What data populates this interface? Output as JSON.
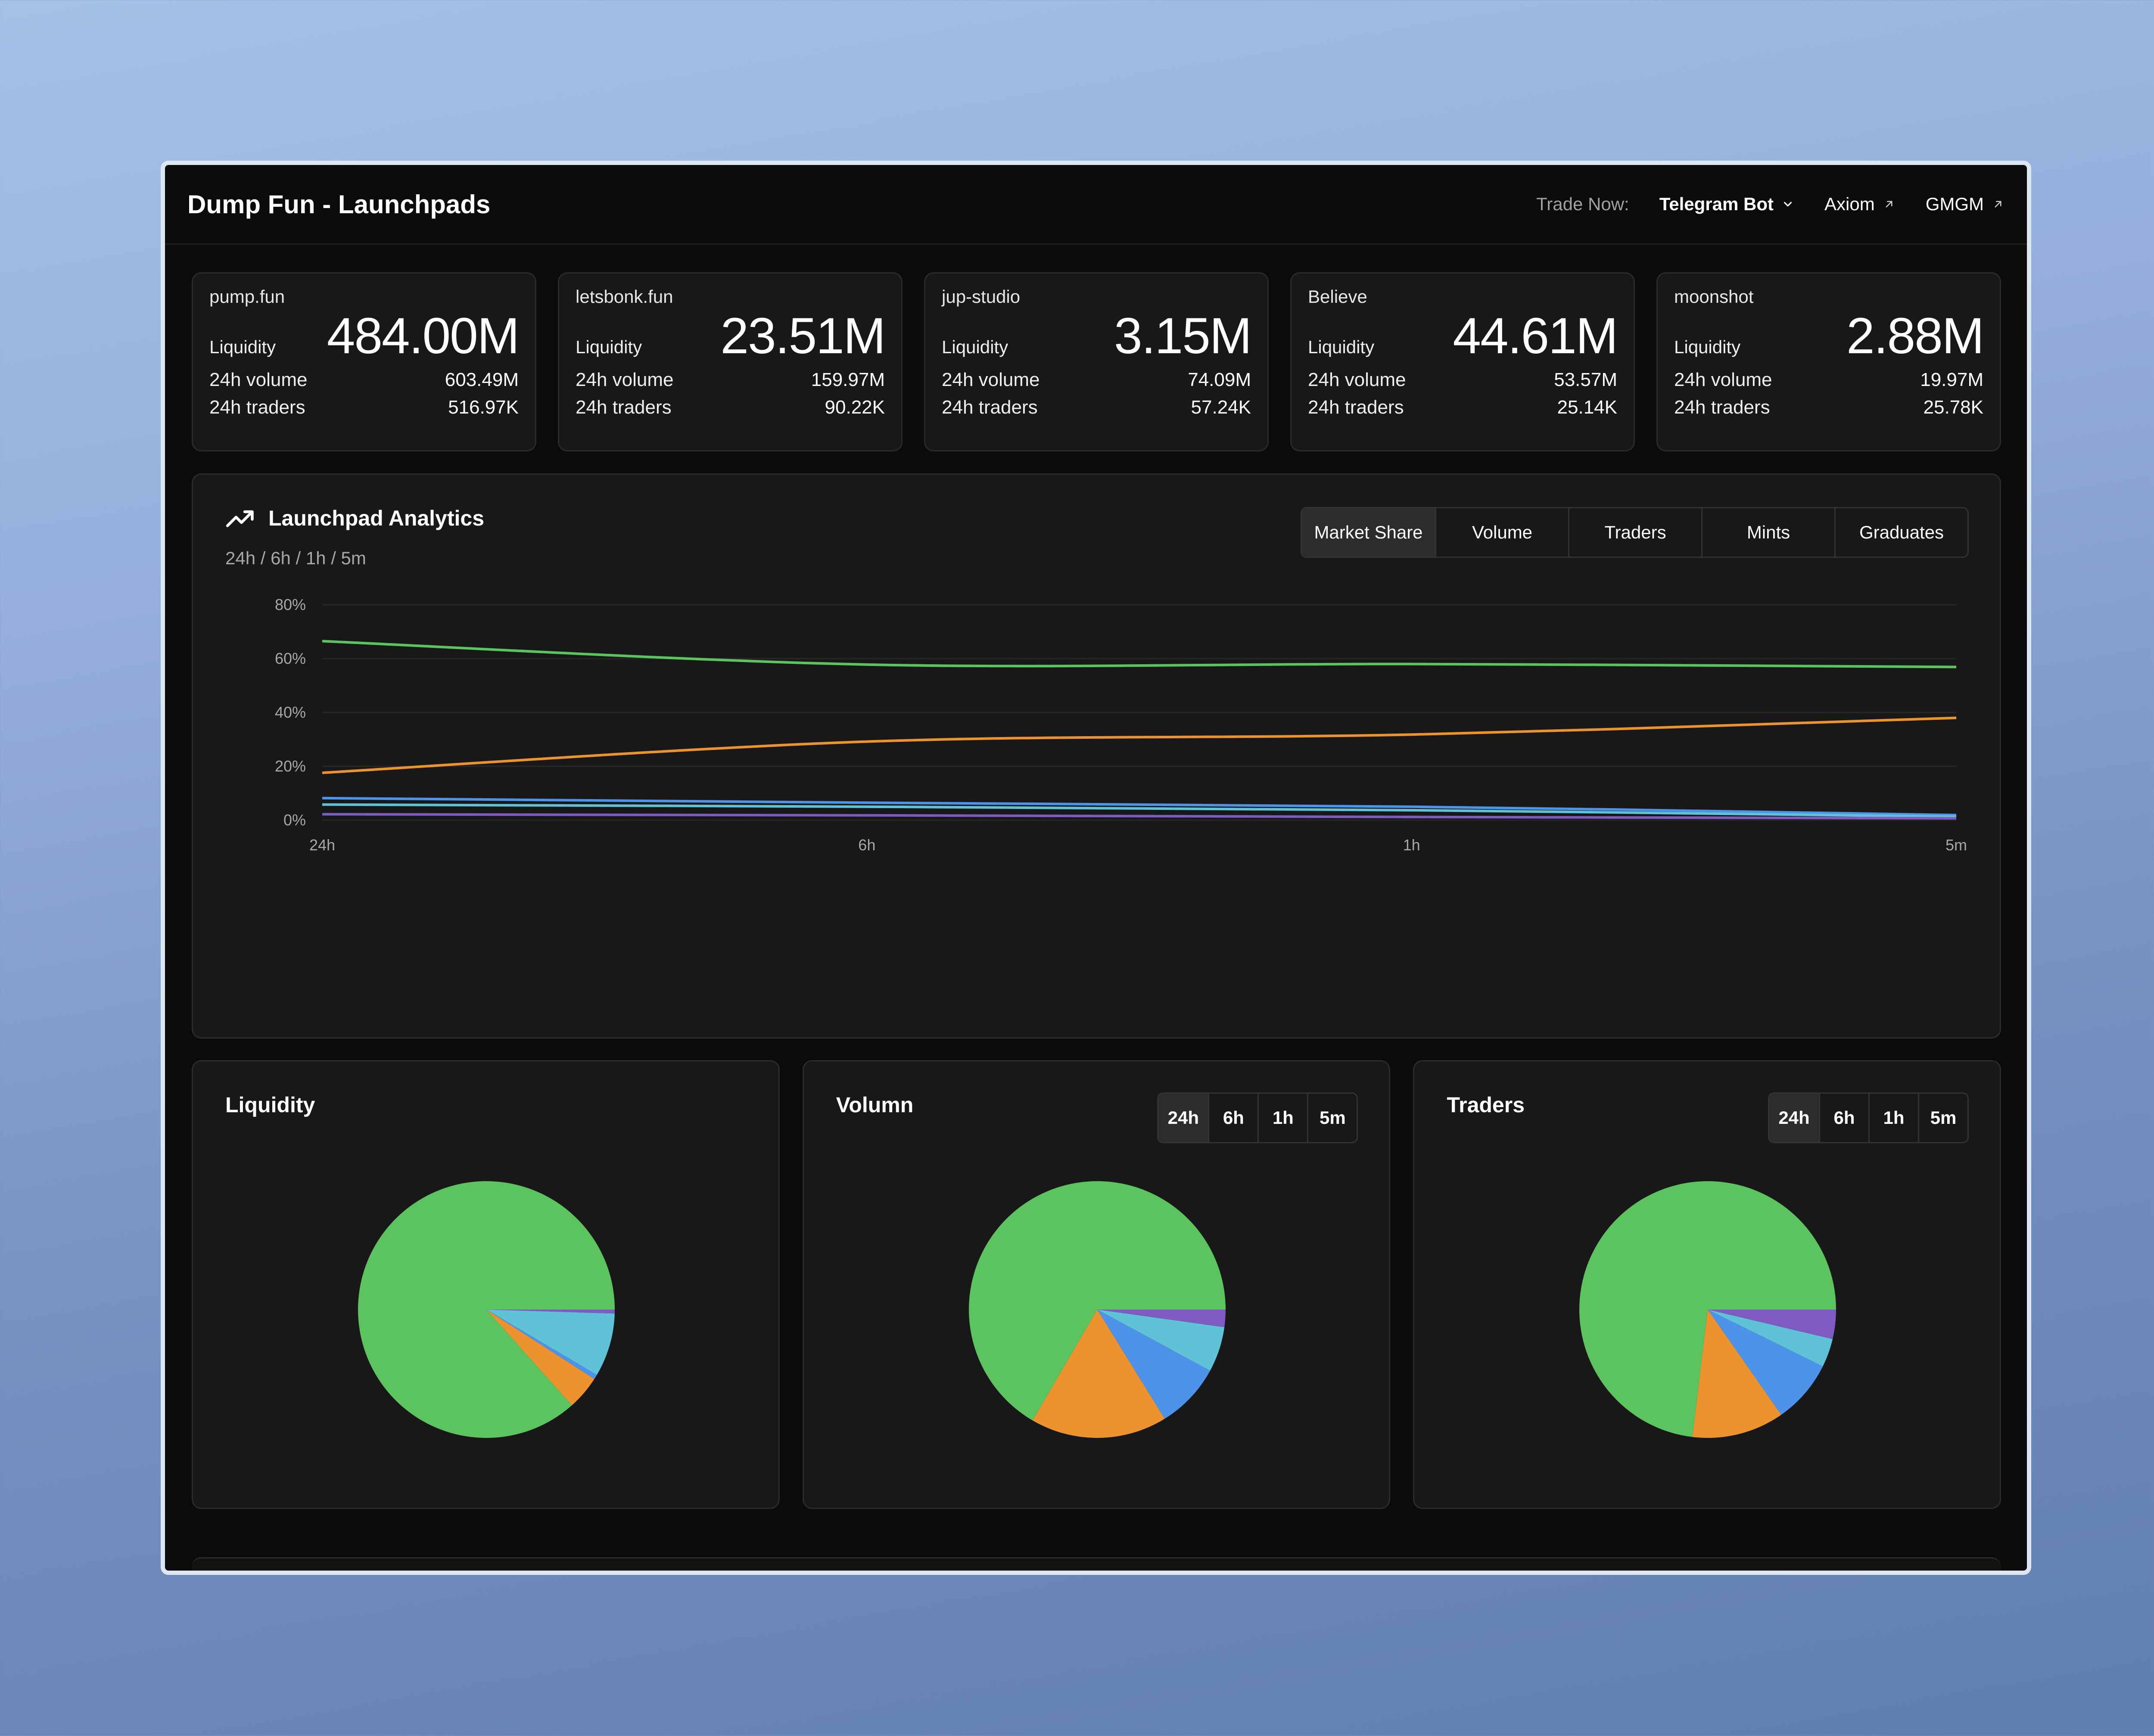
{
  "header": {
    "title": "Dump Fun - Launchpads",
    "trade_label": "Trade Now:",
    "links": [
      {
        "label": "Telegram Bot",
        "icon": "chevron-down-icon"
      },
      {
        "label": "Axiom",
        "icon": "external-arrow-icon"
      },
      {
        "label": "GMGM",
        "icon": "external-arrow-icon"
      }
    ]
  },
  "stats": [
    {
      "name": "pump.fun",
      "liquidity_label": "Liquidity",
      "liquidity": "484.00M",
      "volume_label": "24h volume",
      "volume": "603.49M",
      "traders_label": "24h traders",
      "traders": "516.97K"
    },
    {
      "name": "letsbonk.fun",
      "liquidity_label": "Liquidity",
      "liquidity": "23.51M",
      "volume_label": "24h volume",
      "volume": "159.97M",
      "traders_label": "24h traders",
      "traders": "90.22K"
    },
    {
      "name": "jup-studio",
      "liquidity_label": "Liquidity",
      "liquidity": "3.15M",
      "volume_label": "24h volume",
      "volume": "74.09M",
      "traders_label": "24h traders",
      "traders": "57.24K"
    },
    {
      "name": "Believe",
      "liquidity_label": "Liquidity",
      "liquidity": "44.61M",
      "volume_label": "24h volume",
      "volume": "53.57M",
      "traders_label": "24h traders",
      "traders": "25.14K"
    },
    {
      "name": "moonshot",
      "liquidity_label": "Liquidity",
      "liquidity": "2.88M",
      "volume_label": "24h volume",
      "volume": "19.97M",
      "traders_label": "24h traders",
      "traders": "25.78K"
    }
  ],
  "analytics": {
    "title": "Launchpad Analytics",
    "subtitle": "24h / 6h / 1h / 5m",
    "icon": "trending-up-icon",
    "metrics": [
      "Market Share",
      "Volume",
      "Traders",
      "Mints",
      "Graduates"
    ],
    "active_metric": "Market Share"
  },
  "colors": {
    "green": "#5cc45e",
    "orange": "#ec922f",
    "blue": "#4d93ea",
    "cyan": "#5fc2d6",
    "purple": "#7e5ac2",
    "card_bg": "#181818",
    "grid": "#272727"
  },
  "chart_data": [
    {
      "type": "line",
      "title": "",
      "x": [
        "24h",
        "6h",
        "1h",
        "5m"
      ],
      "ylim": [
        0,
        80
      ],
      "yticks": [
        "0%",
        "20%",
        "40%",
        "60%",
        "80%"
      ],
      "grid": true,
      "series": [
        {
          "color": "#5cc45e",
          "values": [
            66.5,
            57.8,
            58.0,
            56.9
          ]
        },
        {
          "color": "#ec922f",
          "values": [
            17.6,
            29.2,
            31.8,
            38.0
          ]
        },
        {
          "color": "#4d93ea",
          "values": [
            8.2,
            6.5,
            5.0,
            1.9
          ]
        },
        {
          "color": "#5fc2d6",
          "values": [
            5.8,
            5.0,
            3.7,
            1.3
          ]
        },
        {
          "color": "#7e5ac2",
          "values": [
            2.2,
            1.8,
            1.2,
            0.7
          ]
        }
      ]
    },
    {
      "type": "pie",
      "title": "Liquidity",
      "slices": [
        {
          "color": "#7e5ac2",
          "value": 0.5
        },
        {
          "color": "#5fc2d6",
          "value": 8.0
        },
        {
          "color": "#4d93ea",
          "value": 0.6
        },
        {
          "color": "#ec922f",
          "value": 4.3
        },
        {
          "color": "#5cc45e",
          "value": 86.6
        }
      ]
    },
    {
      "type": "pie",
      "title": "Volumn",
      "time_options": [
        "24h",
        "6h",
        "1h",
        "5m"
      ],
      "active_time": "24h",
      "slices": [
        {
          "color": "#7e5ac2",
          "value": 2.2
        },
        {
          "color": "#5fc2d6",
          "value": 5.7
        },
        {
          "color": "#4d93ea",
          "value": 8.3
        },
        {
          "color": "#ec922f",
          "value": 17.2
        },
        {
          "color": "#5cc45e",
          "value": 66.6
        }
      ]
    },
    {
      "type": "pie",
      "title": "Traders",
      "time_options": [
        "24h",
        "6h",
        "1h",
        "5m"
      ],
      "active_time": "24h",
      "slices": [
        {
          "color": "#7e5ac2",
          "value": 3.7
        },
        {
          "color": "#5fc2d6",
          "value": 3.6
        },
        {
          "color": "#4d93ea",
          "value": 8.0
        },
        {
          "color": "#ec922f",
          "value": 11.6
        },
        {
          "color": "#5cc45e",
          "value": 73.1
        }
      ]
    }
  ]
}
